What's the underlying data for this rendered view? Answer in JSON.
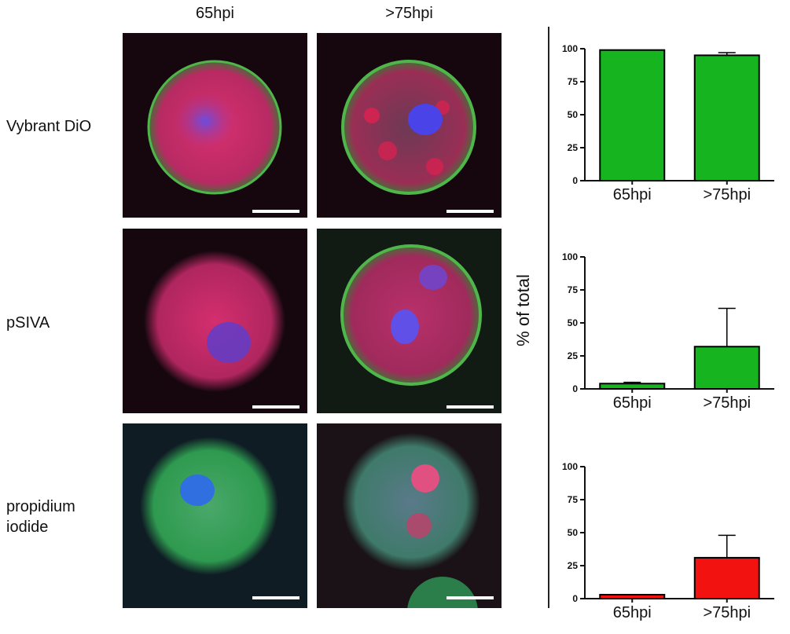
{
  "columns": [
    "65hpi",
    ">75hpi"
  ],
  "rows": [
    {
      "label_lines": [
        "Vybrant DiO"
      ]
    },
    {
      "label_lines": [
        "pSIVA"
      ]
    },
    {
      "label_lines": [
        "propidium",
        "iodide"
      ]
    }
  ],
  "y_axis_label": "% of total",
  "colors": {
    "green_bar": "#16b51f",
    "red_bar": "#f2120f",
    "axis": "#111111"
  },
  "chart_data": [
    {
      "type": "bar",
      "categories": [
        "65hpi",
        ">75hpi"
      ],
      "series": [
        {
          "values": [
            99,
            95
          ],
          "error": [
            0,
            2
          ]
        }
      ],
      "ylim": [
        0,
        100
      ],
      "yticks": [
        0,
        25,
        50,
        75,
        100
      ],
      "color": "green"
    },
    {
      "type": "bar",
      "categories": [
        "65hpi",
        ">75hpi"
      ],
      "series": [
        {
          "values": [
            4,
            32
          ],
          "error": [
            1,
            29
          ]
        }
      ],
      "ylim": [
        0,
        100
      ],
      "yticks": [
        0,
        25,
        50,
        75,
        100
      ],
      "color": "green"
    },
    {
      "type": "bar",
      "categories": [
        "65hpi",
        ">75hpi"
      ],
      "series": [
        {
          "values": [
            3,
            31
          ],
          "error": [
            0,
            17
          ]
        }
      ],
      "ylim": [
        0,
        100
      ],
      "yticks": [
        0,
        25,
        50,
        75,
        100
      ],
      "color": "red"
    }
  ]
}
